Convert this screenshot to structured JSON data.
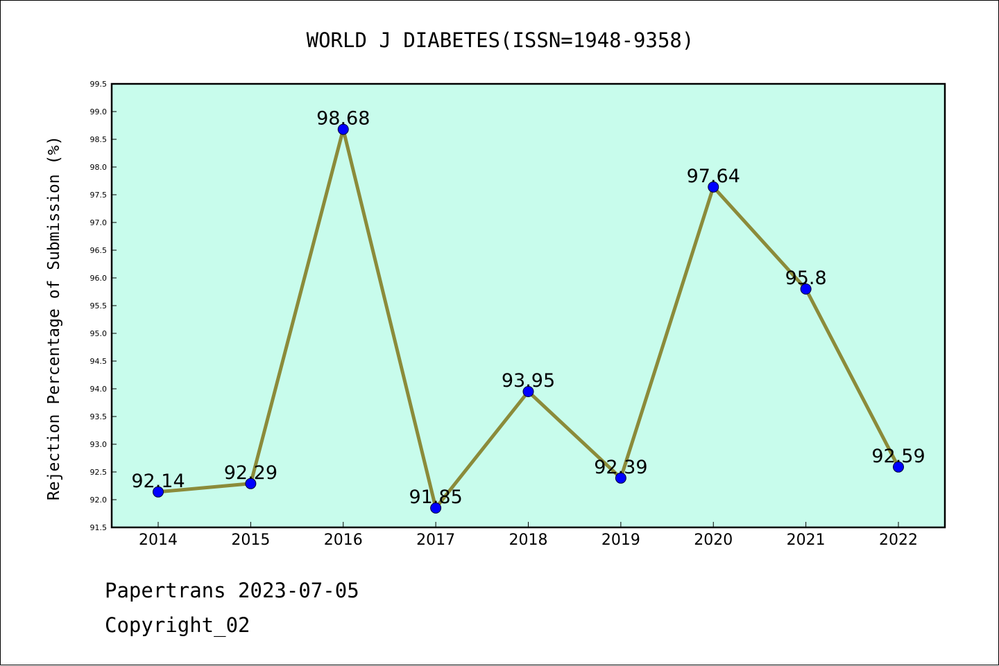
{
  "chart_data": {
    "type": "line",
    "title": "WORLD J DIABETES(ISSN=1948-9358)",
    "xlabel": "",
    "ylabel": "Rejection Percentage of Submission (%)",
    "categories": [
      "2014",
      "2015",
      "2016",
      "2017",
      "2018",
      "2019",
      "2020",
      "2021",
      "2022"
    ],
    "values": [
      92.14,
      92.29,
      98.68,
      91.85,
      93.95,
      92.39,
      97.64,
      95.8,
      92.59
    ],
    "data_labels": [
      "92.14",
      "92.29",
      "98.68",
      "91.85",
      "93.95",
      "92.39",
      "97.64",
      "95.8",
      "92.59"
    ],
    "ylim": [
      91.5,
      99.5
    ],
    "yticks": [
      "91.5",
      "92.0",
      "92.5",
      "93.0",
      "93.5",
      "94.0",
      "94.5",
      "95.0",
      "95.5",
      "96.0",
      "96.5",
      "97.0",
      "97.5",
      "98.0",
      "98.5",
      "99.0",
      "99.5"
    ],
    "grid": false,
    "legend": "none",
    "colors": {
      "plot_background": "#c8fcec",
      "line": "#8b8b3a",
      "marker": "#0000ff"
    }
  },
  "footer": {
    "line1": "Papertrans 2023-07-05",
    "line2": "Copyright_02"
  }
}
